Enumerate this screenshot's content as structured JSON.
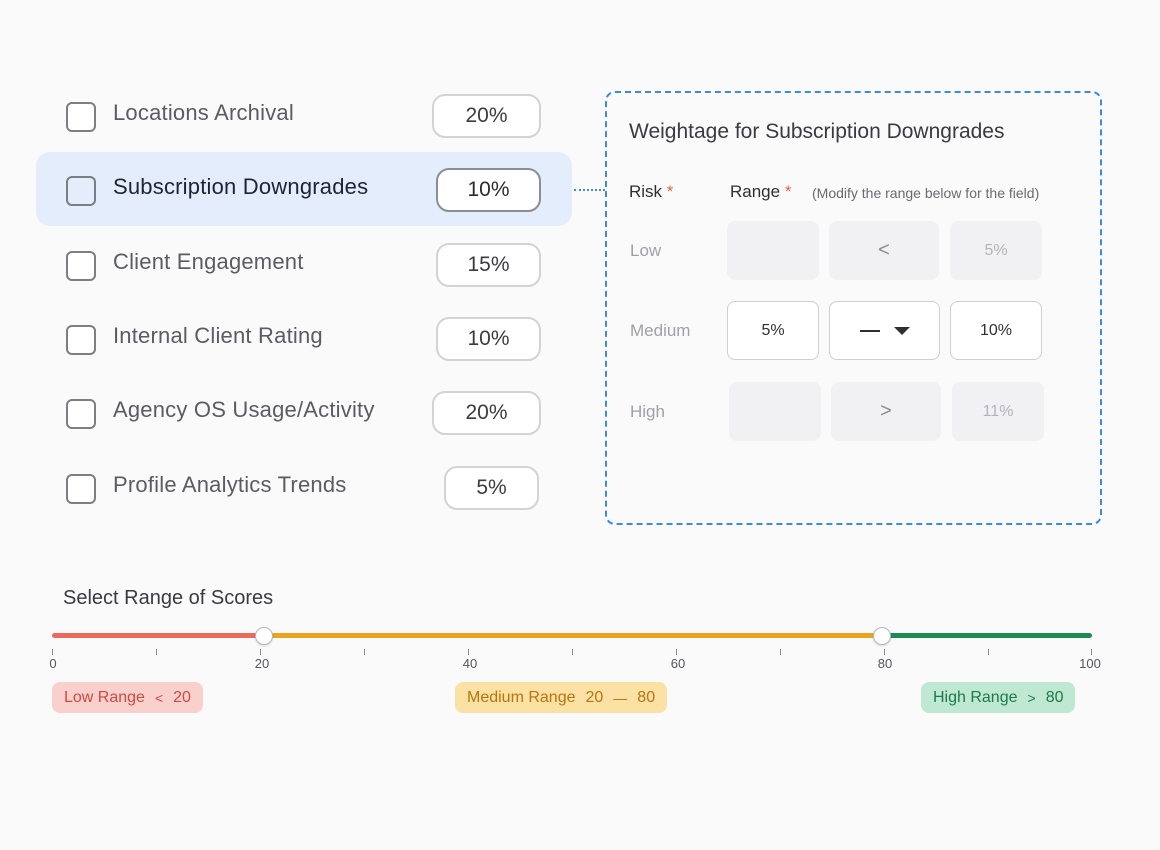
{
  "criteria": [
    {
      "label": "Locations Archival",
      "weight": "20%",
      "selected": false
    },
    {
      "label": "Subscription Downgrades",
      "weight": "10%",
      "selected": true
    },
    {
      "label": "Client Engagement",
      "weight": "15%",
      "selected": false
    },
    {
      "label": "Internal Client Rating",
      "weight": "10%",
      "selected": false
    },
    {
      "label": "Agency OS Usage/Activity",
      "weight": "20%",
      "selected": false
    },
    {
      "label": "Profile Analytics Trends",
      "weight": "5%",
      "selected": false
    }
  ],
  "panel": {
    "title": "Weightage for Subscription Downgrades",
    "risk_header": "Risk",
    "range_header": "Range",
    "required_mark": "*",
    "hint": "(Modify the range below for the field)",
    "rows": [
      {
        "risk": "Low",
        "from": "",
        "operator": "<",
        "to": "5%"
      },
      {
        "risk": "Medium",
        "from": "5%",
        "operator": "—",
        "to": "10%"
      },
      {
        "risk": "High",
        "from": "",
        "operator": ">",
        "to": "11%"
      }
    ]
  },
  "score_range": {
    "title": "Select Range of Scores",
    "min": 0,
    "max": 100,
    "low_thumb": 20,
    "high_thumb": 80,
    "tick_labels": [
      "0",
      "20",
      "40",
      "60",
      "80",
      "100"
    ],
    "chips": {
      "low": {
        "label": "Low Range",
        "symbol": "<",
        "value": "20"
      },
      "medium": {
        "label": "Medium Range",
        "from": "20",
        "symbol": "—",
        "to": "80"
      },
      "high": {
        "label": "High Range",
        "symbol": ">",
        "value": "80"
      }
    },
    "colors": {
      "low": "#ec6a5b",
      "medium": "#eba420",
      "high": "#1f8a56"
    }
  },
  "accent_color": "#3d8ae6"
}
